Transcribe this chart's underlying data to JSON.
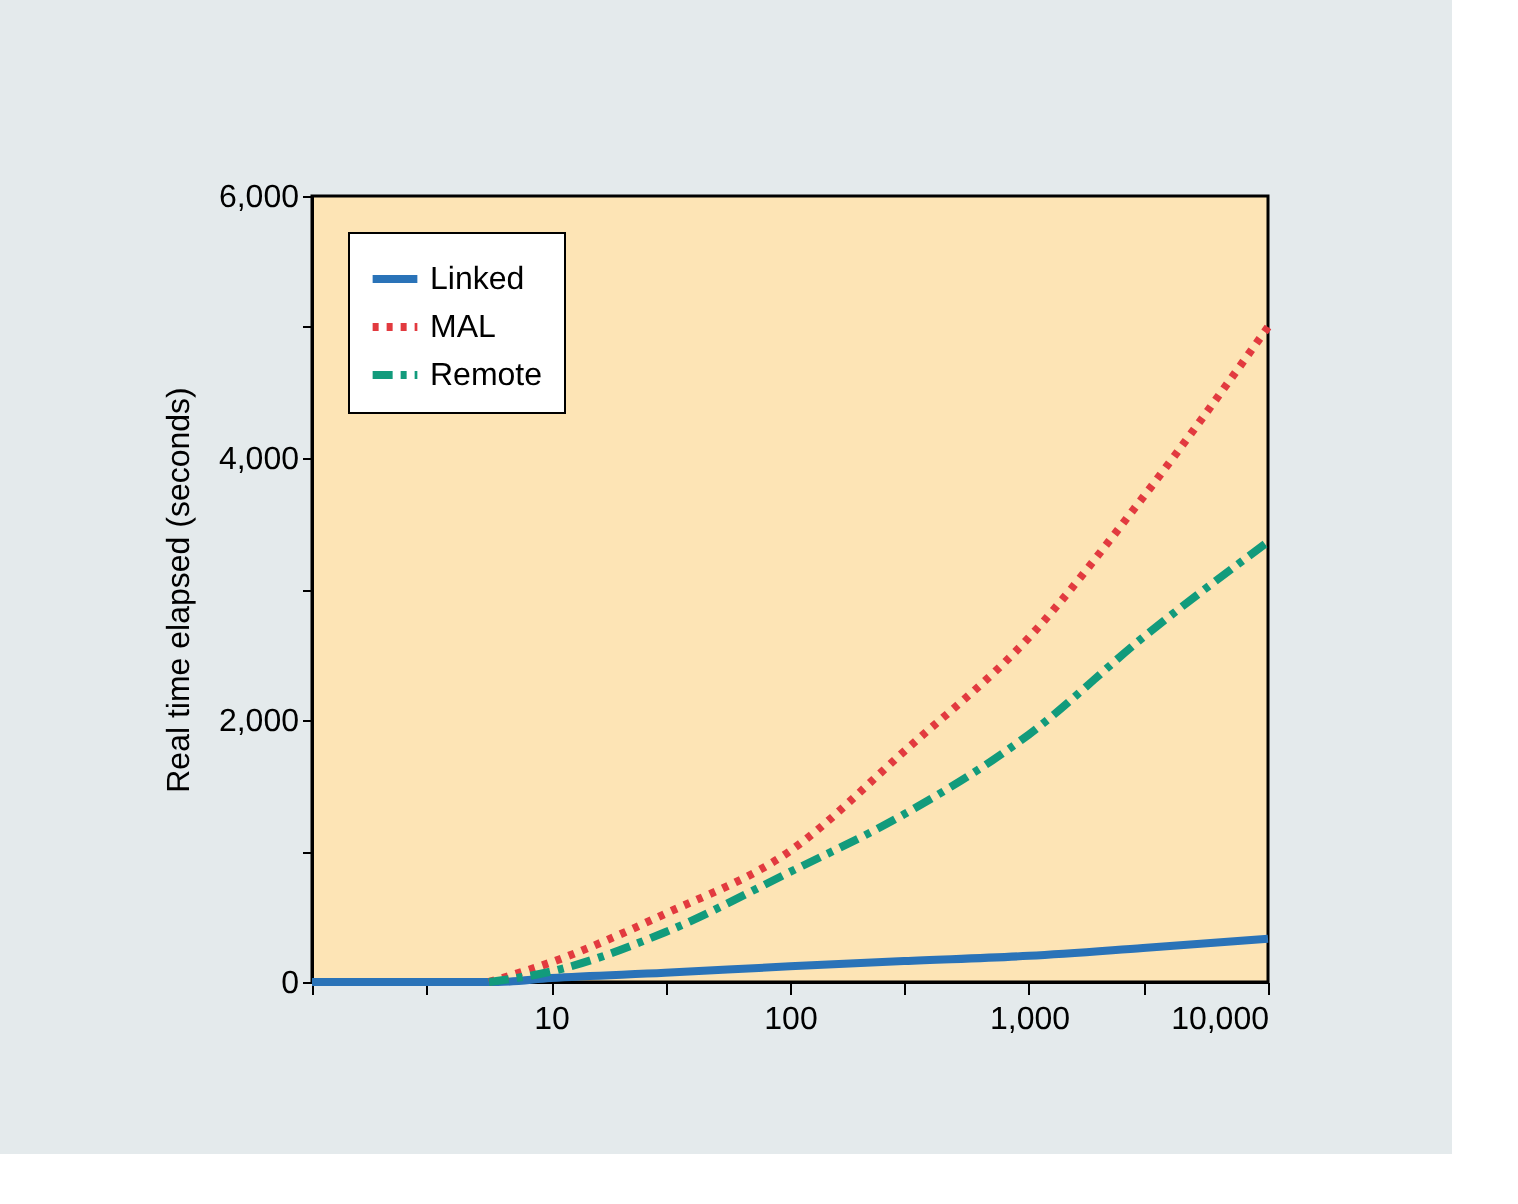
{
  "chart_data": {
    "type": "line",
    "ylabel": "Real time elapsed (seconds)",
    "log": "x",
    "xlim": [
      1,
      10000
    ],
    "ylim": [
      0,
      6000
    ],
    "xticks": [
      {
        "value": 1,
        "label": null
      },
      {
        "value": 3,
        "label": null
      },
      10,
      {
        "value": 30,
        "label": null
      },
      100,
      {
        "value": 300,
        "label": null
      },
      {
        "value": 1000,
        "label": "1,000"
      },
      {
        "value": 3000,
        "label": null
      },
      {
        "value": 10000,
        "label": "10,000"
      }
    ],
    "yticks": [
      0,
      {
        "value": 1000,
        "label": null
      },
      {
        "value": 2000,
        "label": "2,000"
      },
      {
        "value": 3000,
        "label": null
      },
      {
        "value": 4000,
        "label": "4,000"
      },
      {
        "value": 5000,
        "label": null
      },
      {
        "value": 6000,
        "label": "6,000"
      }
    ],
    "grid": false,
    "legend": "top left",
    "marker": "none",
    "series": [
      {
        "name": "Linked",
        "color": "#2a73b8",
        "line_style": "solid",
        "x": [
          1,
          3,
          6,
          10,
          30,
          100,
          300,
          1000,
          3000,
          10000
        ],
        "values": [
          0,
          0,
          0,
          30,
          70,
          120,
          160,
          200,
          260,
          330
        ]
      },
      {
        "name": "MAL",
        "color": "#e23a3f",
        "line_style": "dotted",
        "x": [
          5.5,
          10,
          30,
          100,
          300,
          1000,
          3000,
          10000
        ],
        "values": [
          0,
          150,
          520,
          1000,
          1760,
          2630,
          3700,
          5000
        ]
      },
      {
        "name": "Remote",
        "color": "#129b7c",
        "line_style": "dashdot",
        "x": [
          5.5,
          10,
          30,
          100,
          300,
          1000,
          3000,
          10000
        ],
        "values": [
          0,
          80,
          380,
          840,
          1280,
          1890,
          2630,
          3360
        ]
      }
    ]
  }
}
